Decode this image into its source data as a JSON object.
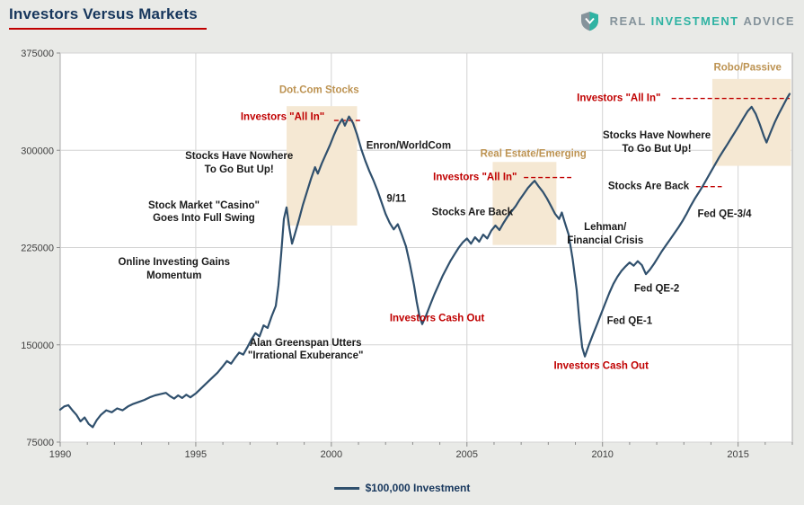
{
  "header": {
    "title": "Investors Versus Markets",
    "logo": {
      "real": "REAL",
      "investment": "INVESTMENT",
      "advice": "ADVICE"
    }
  },
  "colors": {
    "line": "#30506d",
    "red": "#c00000",
    "tan": "#bd9352",
    "black": "#1a1a1a",
    "region_fill": "#f5e8d3",
    "grid": "#d3d3d3",
    "plot_border": "#ababab",
    "plot_bg": "#ffffff",
    "page_bg": "#e9eae7",
    "axis_text": "#3f3f3f",
    "title_text": "#16365c",
    "brand_teal": "#2fb3a3",
    "brand_gray": "#85939b"
  },
  "chart_data": {
    "type": "line",
    "title": "Investors Versus Markets",
    "xlabel": "",
    "ylabel": "",
    "xlim": [
      1990,
      2017
    ],
    "ylim": [
      75000,
      375000
    ],
    "xticks": [
      1990,
      1995,
      2000,
      2005,
      2010,
      2015
    ],
    "yticks": [
      75000,
      150000,
      225000,
      300000,
      375000
    ],
    "grid": true,
    "legend": {
      "label": "$100,000 Investment",
      "position": "bottom-center"
    },
    "series": [
      {
        "name": "$100,000 Investment",
        "color": "#30506d",
        "points": [
          [
            1990,
            100000
          ],
          [
            1990.15,
            102500
          ],
          [
            1990.3,
            103500
          ],
          [
            1990.45,
            99500
          ],
          [
            1990.6,
            96000
          ],
          [
            1990.75,
            91000
          ],
          [
            1990.9,
            94000
          ],
          [
            1991.05,
            89000
          ],
          [
            1991.2,
            86500
          ],
          [
            1991.35,
            92000
          ],
          [
            1991.5,
            96000
          ],
          [
            1991.7,
            99500
          ],
          [
            1991.9,
            98000
          ],
          [
            1992.1,
            101000
          ],
          [
            1992.3,
            99500
          ],
          [
            1992.5,
            102500
          ],
          [
            1992.7,
            104500
          ],
          [
            1992.9,
            106000
          ],
          [
            1993.1,
            107500
          ],
          [
            1993.3,
            109500
          ],
          [
            1993.5,
            111000
          ],
          [
            1993.7,
            112000
          ],
          [
            1993.9,
            113000
          ],
          [
            1994.05,
            110500
          ],
          [
            1994.2,
            108500
          ],
          [
            1994.35,
            111000
          ],
          [
            1994.5,
            109000
          ],
          [
            1994.65,
            111500
          ],
          [
            1994.8,
            109500
          ],
          [
            1995,
            112500
          ],
          [
            1995.2,
            116500
          ],
          [
            1995.4,
            120500
          ],
          [
            1995.6,
            124500
          ],
          [
            1995.8,
            128500
          ],
          [
            1996,
            133500
          ],
          [
            1996.15,
            137500
          ],
          [
            1996.3,
            135500
          ],
          [
            1996.45,
            140000
          ],
          [
            1996.6,
            144000
          ],
          [
            1996.75,
            142500
          ],
          [
            1996.9,
            148000
          ],
          [
            1997.05,
            154000
          ],
          [
            1997.2,
            159000
          ],
          [
            1997.35,
            156500
          ],
          [
            1997.5,
            165000
          ],
          [
            1997.65,
            163000
          ],
          [
            1997.8,
            172000
          ],
          [
            1997.95,
            180000
          ],
          [
            1998.05,
            196000
          ],
          [
            1998.15,
            220000
          ],
          [
            1998.25,
            247000
          ],
          [
            1998.35,
            256000
          ],
          [
            1998.45,
            240000
          ],
          [
            1998.55,
            228000
          ],
          [
            1998.65,
            235000
          ],
          [
            1998.8,
            246000
          ],
          [
            1998.95,
            258000
          ],
          [
            1999.1,
            268000
          ],
          [
            1999.25,
            278000
          ],
          [
            1999.4,
            287000
          ],
          [
            1999.5,
            282000
          ],
          [
            1999.65,
            290000
          ],
          [
            1999.8,
            297000
          ],
          [
            1999.95,
            304000
          ],
          [
            2000.1,
            312000
          ],
          [
            2000.25,
            319000
          ],
          [
            2000.4,
            324000
          ],
          [
            2000.5,
            319000
          ],
          [
            2000.65,
            326000
          ],
          [
            2000.8,
            321000
          ],
          [
            2000.95,
            312000
          ],
          [
            2001.1,
            301000
          ],
          [
            2001.25,
            292000
          ],
          [
            2001.4,
            284000
          ],
          [
            2001.55,
            277000
          ],
          [
            2001.7,
            269000
          ],
          [
            2001.85,
            260000
          ],
          [
            2002,
            251000
          ],
          [
            2002.15,
            244000
          ],
          [
            2002.3,
            239000
          ],
          [
            2002.45,
            243000
          ],
          [
            2002.6,
            235000
          ],
          [
            2002.75,
            226000
          ],
          [
            2002.9,
            212000
          ],
          [
            2003.05,
            196000
          ],
          [
            2003.15,
            183000
          ],
          [
            2003.25,
            172000
          ],
          [
            2003.35,
            166000
          ],
          [
            2003.5,
            173000
          ],
          [
            2003.65,
            181000
          ],
          [
            2003.8,
            189000
          ],
          [
            2003.95,
            196000
          ],
          [
            2004.1,
            203000
          ],
          [
            2004.25,
            209000
          ],
          [
            2004.4,
            215000
          ],
          [
            2004.55,
            220000
          ],
          [
            2004.7,
            225000
          ],
          [
            2004.85,
            229000
          ],
          [
            2005,
            232000
          ],
          [
            2005.15,
            228000
          ],
          [
            2005.3,
            233000
          ],
          [
            2005.45,
            229500
          ],
          [
            2005.6,
            235000
          ],
          [
            2005.75,
            232000
          ],
          [
            2005.9,
            238000
          ],
          [
            2006.05,
            242000
          ],
          [
            2006.2,
            238500
          ],
          [
            2006.35,
            244000
          ],
          [
            2006.5,
            249000
          ],
          [
            2006.65,
            253000
          ],
          [
            2006.8,
            257000
          ],
          [
            2006.95,
            262000
          ],
          [
            2007.1,
            266500
          ],
          [
            2007.25,
            271000
          ],
          [
            2007.4,
            274500
          ],
          [
            2007.5,
            276500
          ],
          [
            2007.65,
            272000
          ],
          [
            2007.8,
            268000
          ],
          [
            2007.95,
            263000
          ],
          [
            2008.1,
            257000
          ],
          [
            2008.25,
            251000
          ],
          [
            2008.4,
            247000
          ],
          [
            2008.5,
            252000
          ],
          [
            2008.6,
            245000
          ],
          [
            2008.75,
            235000
          ],
          [
            2008.9,
            216000
          ],
          [
            2009.05,
            192000
          ],
          [
            2009.15,
            168000
          ],
          [
            2009.25,
            148000
          ],
          [
            2009.35,
            141000
          ],
          [
            2009.5,
            150000
          ],
          [
            2009.65,
            158000
          ],
          [
            2009.8,
            166000
          ],
          [
            2009.95,
            174000
          ],
          [
            2010.1,
            182000
          ],
          [
            2010.25,
            190000
          ],
          [
            2010.4,
            197000
          ],
          [
            2010.55,
            202500
          ],
          [
            2010.7,
            207000
          ],
          [
            2010.85,
            210500
          ],
          [
            2011,
            213500
          ],
          [
            2011.15,
            211000
          ],
          [
            2011.3,
            214500
          ],
          [
            2011.45,
            211500
          ],
          [
            2011.6,
            204500
          ],
          [
            2011.75,
            208000
          ],
          [
            2011.9,
            212500
          ],
          [
            2012.05,
            217500
          ],
          [
            2012.2,
            222500
          ],
          [
            2012.35,
            227000
          ],
          [
            2012.5,
            231500
          ],
          [
            2012.65,
            236000
          ],
          [
            2012.8,
            240500
          ],
          [
            2012.95,
            245500
          ],
          [
            2013.1,
            251000
          ],
          [
            2013.25,
            257000
          ],
          [
            2013.4,
            262500
          ],
          [
            2013.55,
            267500
          ],
          [
            2013.7,
            272500
          ],
          [
            2013.85,
            278000
          ],
          [
            2014,
            283500
          ],
          [
            2014.15,
            289000
          ],
          [
            2014.3,
            294500
          ],
          [
            2014.45,
            299500
          ],
          [
            2014.6,
            304500
          ],
          [
            2014.75,
            309500
          ],
          [
            2014.9,
            314500
          ],
          [
            2015.05,
            319500
          ],
          [
            2015.2,
            325000
          ],
          [
            2015.35,
            330000
          ],
          [
            2015.5,
            333500
          ],
          [
            2015.65,
            328000
          ],
          [
            2015.8,
            320000
          ],
          [
            2015.95,
            311000
          ],
          [
            2016.05,
            306000
          ],
          [
            2016.2,
            314000
          ],
          [
            2016.35,
            321500
          ],
          [
            2016.5,
            328000
          ],
          [
            2016.65,
            334000
          ],
          [
            2016.8,
            340000
          ],
          [
            2016.9,
            343500
          ]
        ]
      }
    ],
    "regions": [
      {
        "x0": 1998.35,
        "x1": 2000.95,
        "y0": 242000,
        "y1": 334000
      },
      {
        "x0": 2005.95,
        "x1": 2008.3,
        "y0": 227000,
        "y1": 291000
      },
      {
        "x0": 2014.05,
        "x1": 2016.95,
        "y0": 288000,
        "y1": 355000
      }
    ],
    "dashed_lines": [
      {
        "y": 323000,
        "x0": 2000.1,
        "x1": 2001.15
      },
      {
        "y": 279000,
        "x0": 2007.1,
        "x1": 2008.85
      },
      {
        "y": 272000,
        "x0": 2013.45,
        "x1": 2014.4
      },
      {
        "y": 340000,
        "x0": 2012.55,
        "x1": 2016.9
      }
    ],
    "annotations": [
      {
        "text": "Dot.Com Stocks",
        "x": 1999.55,
        "y": 346000,
        "color": "tan"
      },
      {
        "text": "Investors \"All In\"",
        "x": 1998.2,
        "y": 325000,
        "color": "red"
      },
      {
        "text": "Stocks Have Nowhere\nTo Go But Up!",
        "x": 1996.6,
        "y": 290000,
        "color": "black"
      },
      {
        "text": "Stock Market \"Casino\"\nGoes Into Full Swing",
        "x": 1995.3,
        "y": 252000,
        "color": "black"
      },
      {
        "text": "Online Investing Gains\nMomentum",
        "x": 1994.2,
        "y": 208000,
        "color": "black"
      },
      {
        "text": "Alan Greenspan Utters\n\"Irrational Exuberance\"",
        "x": 1999.05,
        "y": 146000,
        "color": "black"
      },
      {
        "text": "Enron/WorldCom",
        "x": 2002.85,
        "y": 303000,
        "color": "black"
      },
      {
        "text": "9/11",
        "x": 2002.4,
        "y": 262000,
        "color": "black"
      },
      {
        "text": "Stocks Are Back",
        "x": 2005.2,
        "y": 252000,
        "color": "black"
      },
      {
        "text": "Investors Cash Out",
        "x": 2003.9,
        "y": 170000,
        "color": "red"
      },
      {
        "text": "Real Estate/Emerging",
        "x": 2007.45,
        "y": 297000,
        "color": "tan"
      },
      {
        "text": "Investors \"All In\"",
        "x": 2005.3,
        "y": 279000,
        "color": "red"
      },
      {
        "text": "Lehman/\nFinancial Crisis",
        "x": 2010.1,
        "y": 235000,
        "color": "black"
      },
      {
        "text": "Investors Cash Out",
        "x": 2009.95,
        "y": 133000,
        "color": "red"
      },
      {
        "text": "Fed QE-1",
        "x": 2011.0,
        "y": 168000,
        "color": "black"
      },
      {
        "text": "Fed QE-2",
        "x": 2012.0,
        "y": 193000,
        "color": "black"
      },
      {
        "text": "Stocks Are Back",
        "x": 2011.7,
        "y": 272000,
        "color": "black"
      },
      {
        "text": "Fed QE-3/4",
        "x": 2014.5,
        "y": 250000,
        "color": "black"
      },
      {
        "text": "Stocks Have Nowhere\nTo Go But Up!",
        "x": 2012.0,
        "y": 306000,
        "color": "black"
      },
      {
        "text": "Investors \"All In\"",
        "x": 2010.6,
        "y": 340000,
        "color": "red"
      },
      {
        "text": "Robo/Passive",
        "x": 2015.35,
        "y": 363000,
        "color": "tan"
      }
    ]
  }
}
